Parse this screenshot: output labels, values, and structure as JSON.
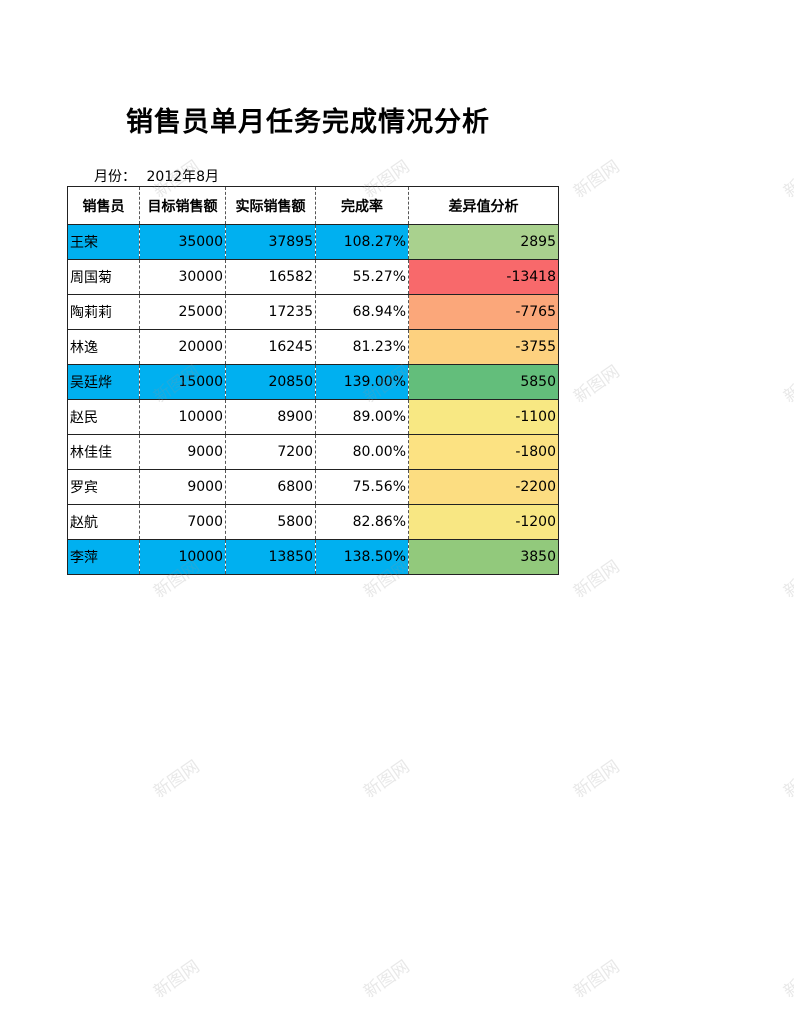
{
  "title": "销售员单月任务完成情况分析",
  "month": {
    "label": "月份：",
    "value": "2012年8月"
  },
  "table": {
    "headers": [
      "销售员",
      "目标销售额",
      "实际销售额",
      "完成率",
      "差异值分析"
    ],
    "rows": [
      {
        "name": "王荣",
        "target": "35000",
        "actual": "37895",
        "rate": "108.27%",
        "diff": "2895",
        "highlight": true,
        "diff_color": "#a9d18e"
      },
      {
        "name": "周国菊",
        "target": "30000",
        "actual": "16582",
        "rate": "55.27%",
        "diff": "-13418",
        "highlight": false,
        "diff_color": "#f8696b"
      },
      {
        "name": "陶莉莉",
        "target": "25000",
        "actual": "17235",
        "rate": "68.94%",
        "diff": "-7765",
        "highlight": false,
        "diff_color": "#fba77a"
      },
      {
        "name": "林逸",
        "target": "20000",
        "actual": "16245",
        "rate": "81.23%",
        "diff": "-3755",
        "highlight": false,
        "diff_color": "#fdd17f"
      },
      {
        "name": "吴廷烨",
        "target": "15000",
        "actual": "20850",
        "rate": "139.00%",
        "diff": "5850",
        "highlight": true,
        "diff_color": "#63be7b"
      },
      {
        "name": "赵民",
        "target": "10000",
        "actual": "8900",
        "rate": "89.00%",
        "diff": "-1100",
        "highlight": false,
        "diff_color": "#f8e883"
      },
      {
        "name": "林佳佳",
        "target": "9000",
        "actual": "7200",
        "rate": "80.00%",
        "diff": "-1800",
        "highlight": false,
        "diff_color": "#fce282"
      },
      {
        "name": "罗宾",
        "target": "9000",
        "actual": "6800",
        "rate": "75.56%",
        "diff": "-2200",
        "highlight": false,
        "diff_color": "#fcdd81"
      },
      {
        "name": "赵航",
        "target": "7000",
        "actual": "5800",
        "rate": "82.86%",
        "diff": "-1200",
        "highlight": false,
        "diff_color": "#f8e783"
      },
      {
        "name": "李萍",
        "target": "10000",
        "actual": "13850",
        "rate": "138.50%",
        "diff": "3850",
        "highlight": true,
        "diff_color": "#92c97c"
      }
    ]
  },
  "watermark_text": "新图网"
}
